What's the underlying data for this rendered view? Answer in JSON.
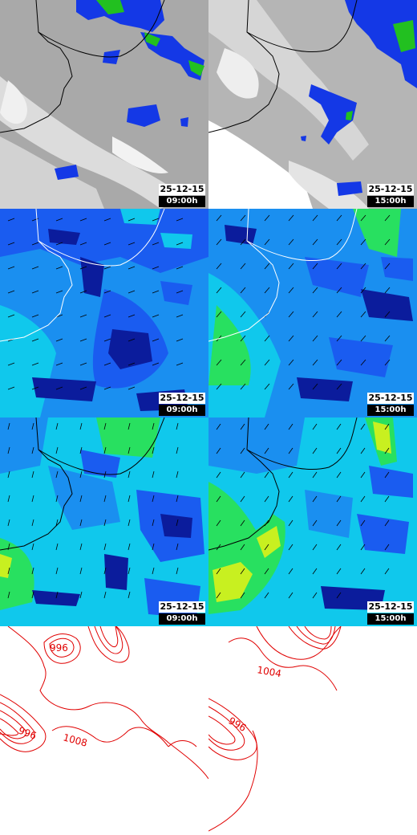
{
  "colors": {
    "cloud_gray": "#a9a9a9",
    "cloud_light": "#d8d8d8",
    "precip_blue": "#1438e6",
    "precip_green": "#22c020",
    "wind_dark": "#0b1c9c",
    "wind_blue": "#1a5cf0",
    "wind_cyan": "#10c8ec",
    "wind_green": "#28e060",
    "wind_yellow": "#c8f020",
    "coast": "#000000",
    "isobar": "#e00000"
  },
  "rows": [
    {
      "kind": "precipitation",
      "panels": [
        {
          "date": "25-12-15",
          "time": "09:00h"
        },
        {
          "date": "25-12-15",
          "time": "15:00h"
        }
      ]
    },
    {
      "kind": "wind-upper",
      "panels": [
        {
          "date": "25-12-15",
          "time": "09:00h"
        },
        {
          "date": "25-12-15",
          "time": "15:00h"
        }
      ]
    },
    {
      "kind": "wind-surface",
      "panels": [
        {
          "date": "25-12-15",
          "time": "09:00h"
        },
        {
          "date": "25-12-15",
          "time": "15:00h"
        }
      ]
    },
    {
      "kind": "pressure",
      "panels": [
        {
          "isobar_labels": [
            "996",
            "996",
            "1008"
          ]
        },
        {
          "isobar_labels": [
            "1004",
            "996"
          ]
        }
      ]
    }
  ]
}
